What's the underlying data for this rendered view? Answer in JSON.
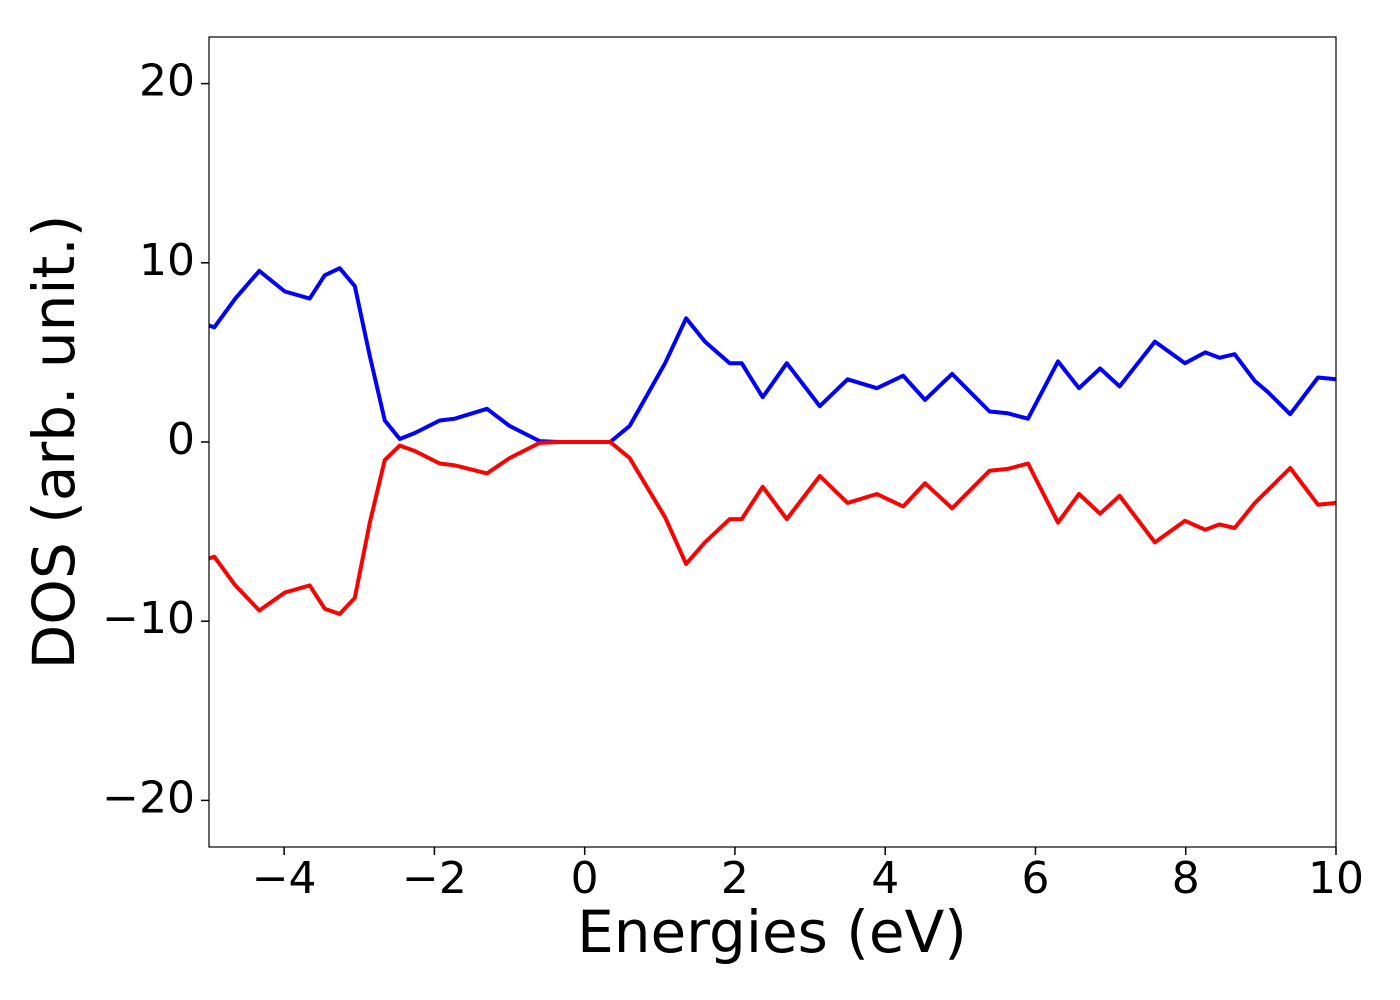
{
  "chart_data": {
    "type": "line",
    "xlabel": "Energies (eV)",
    "ylabel": "DOS (arb. unit.)",
    "x": [
      -5,
      -4.93,
      -4.65,
      -4.33,
      -3.99,
      -3.66,
      -3.46,
      -3.26,
      -3.06,
      -2.86,
      -2.66,
      -2.46,
      -2.26,
      -1.93,
      -1.73,
      -1.3,
      -1.0,
      -0.6,
      -0.33,
      0.34,
      0.6,
      1.07,
      1.35,
      1.6,
      1.93,
      2.09,
      2.37,
      2.69,
      3.13,
      3.5,
      3.89,
      4.24,
      4.53,
      4.89,
      5.39,
      5.63,
      5.9,
      6.3,
      6.58,
      6.86,
      7.12,
      7.59,
      7.99,
      8.26,
      8.45,
      8.65,
      8.92,
      9.09,
      9.39,
      9.76,
      10
    ],
    "series": [
      {
        "color": "#0000ff",
        "values": [
          6.5,
          6.4,
          8.0,
          9.55,
          8.4,
          8.0,
          9.3,
          9.7,
          8.7,
          4.8,
          1.2,
          0.17,
          0.5,
          1.2,
          1.3,
          1.85,
          0.9,
          0.05,
          0.0,
          0.0,
          0.9,
          4.4,
          6.9,
          5.6,
          4.4,
          4.4,
          2.5,
          4.4,
          2.0,
          3.5,
          3.0,
          3.7,
          2.35,
          3.8,
          1.7,
          1.6,
          1.3,
          4.5,
          3.0,
          4.1,
          3.1,
          5.6,
          4.4,
          5.0,
          4.7,
          4.9,
          3.4,
          2.8,
          1.55,
          3.6,
          3.5
        ]
      },
      {
        "color": "#ff0000",
        "values": [
          -6.5,
          -6.4,
          -8.0,
          -9.4,
          -8.4,
          -8.0,
          -9.3,
          -9.6,
          -8.7,
          -4.5,
          -1.0,
          -0.2,
          -0.5,
          -1.2,
          -1.3,
          -1.75,
          -0.9,
          -0.05,
          0.0,
          0.0,
          -0.9,
          -4.2,
          -6.8,
          -5.6,
          -4.3,
          -4.3,
          -2.5,
          -4.3,
          -1.9,
          -3.4,
          -2.9,
          -3.6,
          -2.3,
          -3.7,
          -1.6,
          -1.5,
          -1.2,
          -4.5,
          -2.9,
          -4.0,
          -3.0,
          -5.6,
          -4.4,
          -4.9,
          -4.6,
          -4.8,
          -3.4,
          -2.7,
          -1.45,
          -3.5,
          -3.4
        ]
      }
    ],
    "xlim": [
      -5,
      10
    ],
    "xticks": [
      {
        "value": -4,
        "label": "−4"
      },
      {
        "value": -2,
        "label": "−2"
      },
      0,
      2,
      4,
      6,
      8,
      10
    ],
    "ylim": [
      -22.6,
      22.6
    ],
    "yticks": [
      {
        "value": -20,
        "label": "−20"
      },
      {
        "value": -10,
        "label": "−10"
      },
      0,
      10,
      20
    ],
    "grid": false
  }
}
